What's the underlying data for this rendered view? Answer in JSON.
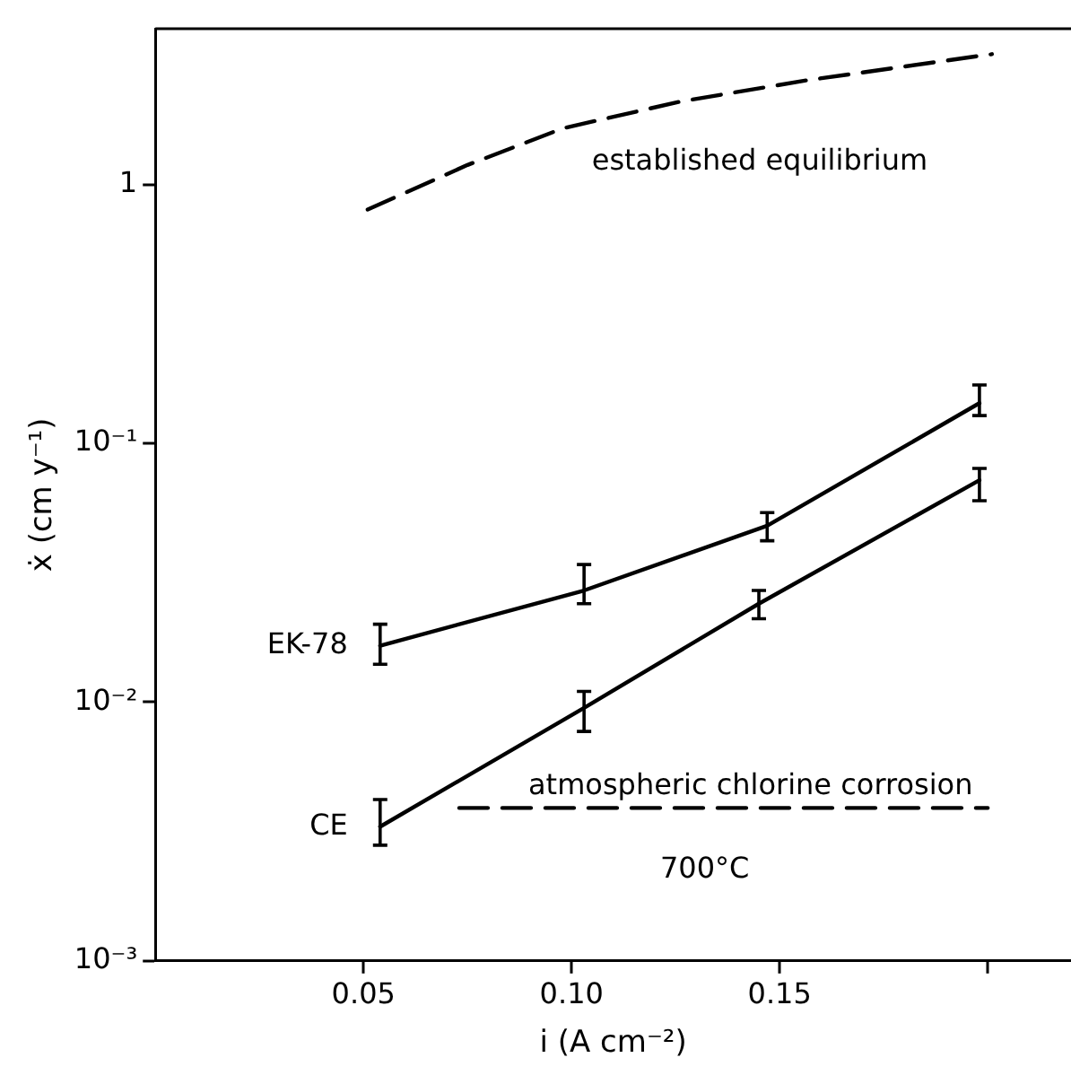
{
  "chart_data": {
    "type": "line",
    "xlabel": "i (A cm⁻²)",
    "ylabel": "ẋ (cm y⁻¹)",
    "log": "y",
    "grid": false,
    "legend": false,
    "marker": "none",
    "xlim": [
      0,
      0.22
    ],
    "xticks": [
      0.05,
      {
        "value": 0.1,
        "label": "0.10"
      },
      0.15,
      {
        "value": 0.2,
        "label": null
      }
    ],
    "ylim": [
      0.001,
      4
    ],
    "yticks": [
      {
        "value": 0.001,
        "label": "10⁻³"
      },
      {
        "value": 0.01,
        "label": "10⁻²"
      },
      {
        "value": 0.1,
        "label": "10⁻¹"
      },
      1
    ],
    "series": [
      {
        "name": "EK-78",
        "color": "#000000",
        "line_style": "solid",
        "x": [
          0.054,
          0.103,
          0.147,
          0.198
        ],
        "values": [
          0.0165,
          0.027,
          0.048,
          0.143
        ],
        "errors": [
          [
            0.014,
            0.02
          ],
          [
            0.024,
            0.034
          ],
          [
            0.042,
            0.054
          ],
          [
            0.128,
            0.168
          ]
        ]
      },
      {
        "name": "CE",
        "color": "#000000",
        "line_style": "solid",
        "x": [
          0.054,
          0.103,
          0.145,
          0.198
        ],
        "values": [
          0.0033,
          0.0095,
          0.024,
          0.072
        ],
        "errors": [
          [
            0.0028,
            0.0042
          ],
          [
            0.0077,
            0.011
          ],
          [
            0.021,
            0.027
          ],
          [
            0.06,
            0.08
          ]
        ]
      },
      {
        "color": "#000000",
        "line_style": "dashed",
        "x": [
          0.051,
          0.075,
          0.098,
          0.126,
          0.156,
          0.201
        ],
        "values": [
          0.8,
          1.19,
          1.65,
          2.09,
          2.52,
          3.19
        ]
      },
      {
        "color": "#000000",
        "line_style": "dashed",
        "x": [
          0.073,
          0.2
        ],
        "values": [
          0.0039,
          0.0039
        ]
      }
    ],
    "annotations": [
      "established equilibrium",
      "atmospheric chlorine corrosion",
      "700°C"
    ]
  }
}
